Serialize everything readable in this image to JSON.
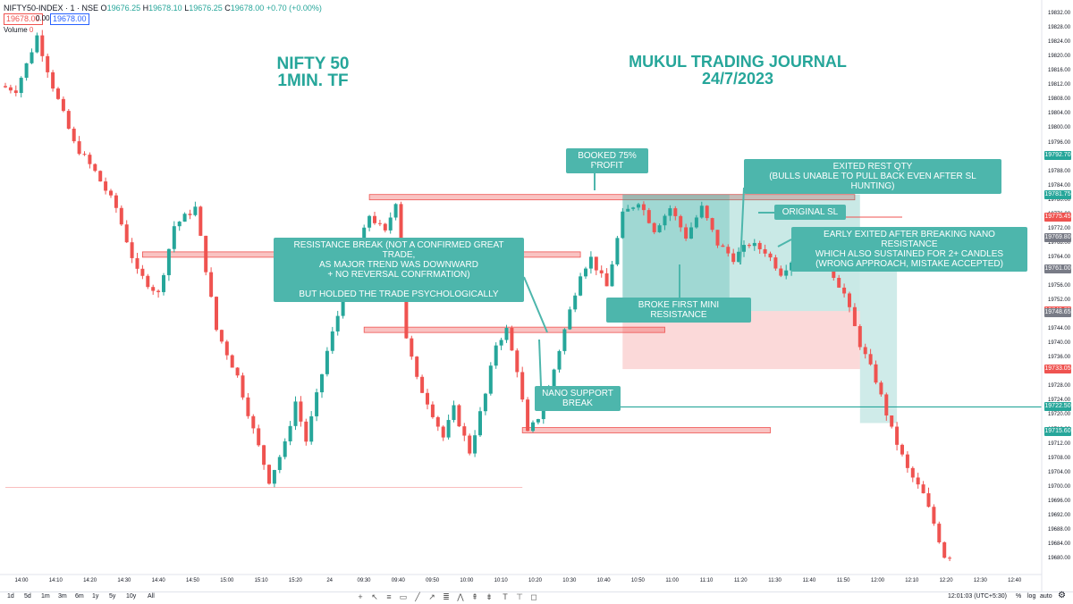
{
  "header": {
    "symbol": "NIFTY50-INDEX · 1 · NSE",
    "open": "19676.25",
    "high": "19678.10",
    "low": "19676.25",
    "close": "19678.00",
    "change": "+0.70 (+0.00%)",
    "bid_box": "19678.00",
    "spread_box": "0.00",
    "ask_box": "19678.00",
    "volume_label": "Volume",
    "volume_value": "0"
  },
  "titles": {
    "left": "NIFTY 50\n1MIN. TF",
    "right": "MUKUL TRADING JOURNAL\n24/7/2023"
  },
  "annotations": {
    "booked": "BOOKED 75% PROFIT",
    "exited_rest": "EXITED REST QTY\n(BULLS UNABLE TO PULL BACK EVEN AFTER SL HUNTING)",
    "original_sl": "ORIGINAL SL",
    "early_exit": "EARLY EXITED AFTER BREAKING NANO RESISTANCE\nWHICH ALSO SUSTAINED FOR 2+ CANDLES\n(WRONG APPROACH, MISTAKE ACCEPTED)",
    "resistance_break": "RESISTANCE BREAK (NOT A CONFIRMED GREAT TRADE,\nAS MAJOR TREND WAS DOWNWARD\n+ NO REVERSAL CONFRMATION)\n\nBUT HOLDED THE TRADE PSYCHOLOGICALLY",
    "broke_first": "BROKE FIRST MINI RESISTANCE",
    "nano_support": "NANO SUPPORT BREAK"
  },
  "price_tags": [
    {
      "text": "19792.70",
      "price": 19792.7,
      "color": "#26a69a"
    },
    {
      "text": "19781.75",
      "price": 19781.75,
      "color": "#26a69a"
    },
    {
      "text": "19775.45",
      "price": 19775.45,
      "color": "#ef5350"
    },
    {
      "text": "19769.80",
      "price": 19769.8,
      "color": "#787b86"
    },
    {
      "text": "19761.00",
      "price": 19761.0,
      "color": "#787b86"
    },
    {
      "text": "19749.25",
      "price": 19749.25,
      "color": "#ef5350"
    },
    {
      "text": "19748.65",
      "price": 19748.65,
      "color": "#787b86"
    },
    {
      "text": "19733.05",
      "price": 19733.05,
      "color": "#ef5350"
    },
    {
      "text": "19722.50",
      "price": 19722.5,
      "color": "#26a69a"
    },
    {
      "text": "19715.60",
      "price": 19715.6,
      "color": "#26a69a"
    }
  ],
  "bottom_bar": {
    "timeframes": [
      "1d",
      "5d",
      "1m",
      "3m",
      "6m",
      "1y",
      "5y",
      "10y",
      "All"
    ],
    "clock": "12:01:03 (UTC+5:30)",
    "pct": "%",
    "log": "log",
    "auto": "auto"
  },
  "colors": {
    "up": "#26a69a",
    "down": "#ef5350",
    "zone_profit": "#26a69a",
    "zone_loss": "#ef5350",
    "note_bg": "#4db6ac"
  },
  "chart_data": {
    "type": "candlestick",
    "instrument": "NIFTY50-INDEX",
    "interval": "1",
    "exchange": "NSE",
    "ylim": [
      19676,
      19836
    ],
    "yticks": [
      19680,
      19684,
      19688,
      19692,
      19696,
      19700,
      19704,
      19708,
      19712,
      19716,
      19720,
      19724,
      19728,
      19732,
      19736,
      19740,
      19744,
      19748,
      19752,
      19756,
      19760,
      19764,
      19768,
      19772,
      19776,
      19780,
      19784,
      19788,
      19792,
      19796,
      19800,
      19804,
      19808,
      19812,
      19816,
      19820,
      19824,
      19828,
      19832
    ],
    "xticks": [
      "14:00",
      "14:10",
      "14:20",
      "14:30",
      "14:40",
      "14:50",
      "15:00",
      "15:10",
      "15:20",
      "24",
      "09:30",
      "09:40",
      "09:50",
      "10:00",
      "10:10",
      "10:20",
      "10:30",
      "10:40",
      "10:50",
      "11:00",
      "11:10",
      "11:20",
      "11:30",
      "11:40",
      "11:50",
      "12:00",
      "12:10",
      "12:20",
      "12:30",
      "12:40"
    ],
    "path": [
      [
        0,
        19812
      ],
      [
        3,
        19811
      ],
      [
        5,
        19818
      ],
      [
        7,
        19826
      ],
      [
        10,
        19812
      ],
      [
        14,
        19796
      ],
      [
        18,
        19788
      ],
      [
        22,
        19778
      ],
      [
        26,
        19760
      ],
      [
        30,
        19754
      ],
      [
        33,
        19773
      ],
      [
        37,
        19778
      ],
      [
        41,
        19744
      ],
      [
        45,
        19731
      ],
      [
        48,
        19716
      ],
      [
        51,
        19702
      ],
      [
        54,
        19712
      ],
      [
        56,
        19724
      ],
      [
        58,
        19713
      ],
      [
        62,
        19738
      ],
      [
        66,
        19758
      ],
      [
        70,
        19776
      ],
      [
        73,
        19771
      ],
      [
        75,
        19780
      ],
      [
        77,
        19742
      ],
      [
        79,
        19730
      ],
      [
        81,
        19724
      ],
      [
        84,
        19714
      ],
      [
        86,
        19722
      ],
      [
        89,
        19710
      ],
      [
        92,
        19726
      ],
      [
        94,
        19740
      ],
      [
        96,
        19744
      ],
      [
        97,
        19738
      ],
      [
        98,
        19733
      ],
      [
        100,
        19715
      ],
      [
        103,
        19722
      ],
      [
        105,
        19733
      ],
      [
        107,
        19744
      ],
      [
        110,
        19760
      ],
      [
        112,
        19764
      ],
      [
        115,
        19756
      ],
      [
        118,
        19776
      ],
      [
        121,
        19780
      ],
      [
        124,
        19772
      ],
      [
        127,
        19778
      ],
      [
        130,
        19770
      ],
      [
        133,
        19778
      ],
      [
        136,
        19768
      ],
      [
        139,
        19764
      ],
      [
        142,
        19768
      ],
      [
        145,
        19766
      ],
      [
        148,
        19760
      ],
      [
        151,
        19765
      ],
      [
        154,
        19769
      ],
      [
        157,
        19762
      ],
      [
        160,
        19754
      ],
      [
        163,
        19740
      ],
      [
        166,
        19730
      ],
      [
        169,
        19716
      ],
      [
        172,
        19705
      ],
      [
        175,
        19698
      ],
      [
        177,
        19690
      ],
      [
        179,
        19681
      ]
    ],
    "levels": [
      {
        "name": "resistance",
        "price": 19781,
        "from": 69,
        "to": 161,
        "color": "#ef5350"
      },
      {
        "name": "resistance",
        "price": 19765,
        "from": 26,
        "to": 109,
        "color": "#ef5350"
      },
      {
        "name": "resistance",
        "price": 19744,
        "from": 68,
        "to": 125,
        "color": "#ef5350"
      },
      {
        "name": "support",
        "price": 19716,
        "from": 98,
        "to": 145,
        "color": "#ef5350"
      },
      {
        "name": "support",
        "price": 19700,
        "from": 0,
        "to": 98,
        "color": "#ef5350"
      },
      {
        "name": "line",
        "price": 19722.5,
        "from": 107,
        "to": 181,
        "color": "#26a69a"
      }
    ],
    "position": {
      "entry": 19749.25,
      "target": 19781.75,
      "stop": 19733.05,
      "from": 117,
      "to": 162
    },
    "exit_zone": {
      "from": 162,
      "to": 169,
      "top": 19764,
      "bottom": 19718
    }
  }
}
